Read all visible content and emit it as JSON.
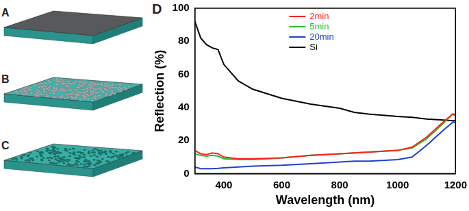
{
  "figure": {
    "panels": [
      {
        "label": "A"
      },
      {
        "label": "B"
      },
      {
        "label": "C"
      }
    ]
  },
  "chart_data": {
    "panel_label": "D",
    "type": "line",
    "x_label": "Wavelength (nm)",
    "y_label": "Reflection (%)",
    "x": [
      300,
      320,
      340,
      360,
      380,
      400,
      450,
      500,
      600,
      700,
      800,
      850,
      900,
      1000,
      1050,
      1100,
      1150,
      1190,
      1200
    ],
    "series": [
      {
        "name": "2min",
        "color": "#ff2020",
        "values": [
          14,
          12,
          11.5,
          12.5,
          12,
          10,
          9,
          9,
          9.5,
          11,
          12,
          12.5,
          13,
          14,
          16,
          22,
          30,
          36,
          35
        ]
      },
      {
        "name": "5min",
        "color": "#22c022",
        "values": [
          12,
          11,
          10.5,
          11,
          10.5,
          9,
          8.5,
          8.5,
          9.5,
          11,
          12,
          12.5,
          13,
          14,
          15.5,
          21,
          29,
          36,
          36
        ]
      },
      {
        "name": "20min",
        "color": "#1f3fd0",
        "values": [
          4,
          3,
          3,
          3,
          3.2,
          3.5,
          4,
          4.5,
          5,
          6,
          7,
          7.5,
          7.5,
          8.5,
          10,
          17,
          25,
          31,
          31
        ]
      },
      {
        "name": "Si",
        "color": "#000000",
        "values": [
          92,
          82,
          78,
          76,
          75,
          66,
          56,
          51,
          45.5,
          42,
          39.5,
          37,
          36,
          34.5,
          34,
          33,
          32.5,
          32,
          32
        ]
      }
    ],
    "xlim": [
      300,
      1200
    ],
    "xticks": [
      400,
      600,
      800,
      1000,
      1200
    ],
    "ylim": [
      0,
      100
    ],
    "yticks": [
      0,
      20,
      40,
      60,
      80,
      100
    ],
    "grid": false,
    "legend": "upper center"
  }
}
